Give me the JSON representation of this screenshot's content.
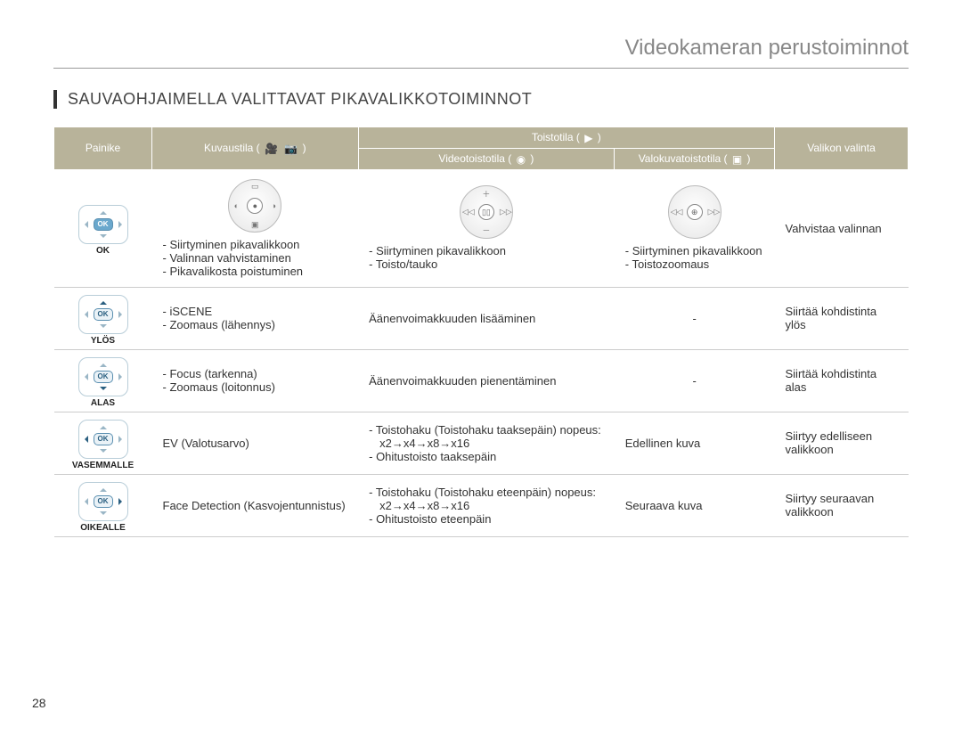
{
  "page_number": "28",
  "header_title": "Videokameran perustoiminnot",
  "section_title": "SAUVAOHJAIMELLA VALITTAVAT PIKAVALIKKOTOIMINNOT",
  "columns": {
    "painike": "Painike",
    "kuvaustila": "Kuvaustila (",
    "toistotila": "Toistotila (",
    "videotoistotila": "Videotoistotila (",
    "valokuvatoistotila": "Valokuvatoistotila (",
    "valikon": "Valikon valinta",
    "close_paren": ")"
  },
  "colors": {
    "header_bg": "#b8b39a",
    "header_text": "#ffffff",
    "divider": "#cccccc",
    "title_grey": "#888888",
    "pad_border": "#b8cdd8",
    "pad_accent": "#2a5f80"
  },
  "rows": {
    "ok": {
      "label": "OK",
      "kuvaustila": [
        "Siirtyminen pikavalikkoon",
        "Valinnan vahvistaminen",
        "Pikavalikosta poistuminen"
      ],
      "video": [
        "Siirtyminen pikavalikkoon",
        "Toisto/tauko"
      ],
      "valokuva": [
        "Siirtyminen pikavalikkoon",
        "Toistozoomaus"
      ],
      "valikon": "Vahvistaa valinnan"
    },
    "ylos": {
      "label": "YLÖS",
      "kuvaustila": [
        "iSCENE",
        "Zoomaus (lähennys)"
      ],
      "video_text": "Äänenvoimakkuuden lisääminen",
      "valokuva_text": "-",
      "valikon": "Siirtää kohdistinta ylös"
    },
    "alas": {
      "label": "ALAS",
      "kuvaustila": [
        "Focus (tarkenna)",
        "Zoomaus (loitonnus)"
      ],
      "video_text": "Äänenvoimakkuuden pienentäminen",
      "valokuva_text": "-",
      "valikon": "Siirtää kohdistinta alas"
    },
    "vasemmalle": {
      "label": "VASEMMALLE",
      "kuvaustila_text": "EV (Valotusarvo)",
      "video_lines": [
        "Toistohaku (Toistohaku taaksepäin) nopeus:",
        "x2→x4→x8→x16",
        "Ohitustoisto taaksepäin"
      ],
      "valokuva_text": "Edellinen kuva",
      "valikon": "Siirtyy edelliseen valikkoon"
    },
    "oikealle": {
      "label": "OIKEALLE",
      "kuvaustila_text": "Face Detection (Kasvojentunnistus)",
      "video_lines": [
        "Toistohaku (Toistohaku eteenpäin) nopeus:",
        "x2→x4→x8→x16",
        "Ohitustoisto eteenpäin"
      ],
      "valokuva_text": "Seuraava kuva",
      "valikon": "Siirtyy seuraavan valikkoon"
    }
  },
  "osd_icons": {
    "kuvaustila": {
      "n": "▭",
      "s": "▣",
      "e": "◑",
      "w": "◐",
      "center": "●"
    },
    "video": {
      "n": "＋",
      "s": "－",
      "e": "▷▷",
      "w": "◁◁",
      "center": "▯▯"
    },
    "valokuva": {
      "n": "",
      "s": "",
      "e": "▷▷",
      "w": "◁◁",
      "center": "⊕"
    }
  },
  "mode_glyphs": {
    "video_cam": "🎥",
    "photo_cam": "📷",
    "play_rect": "▶",
    "photo_play": "▣",
    "video_play": "◉"
  }
}
